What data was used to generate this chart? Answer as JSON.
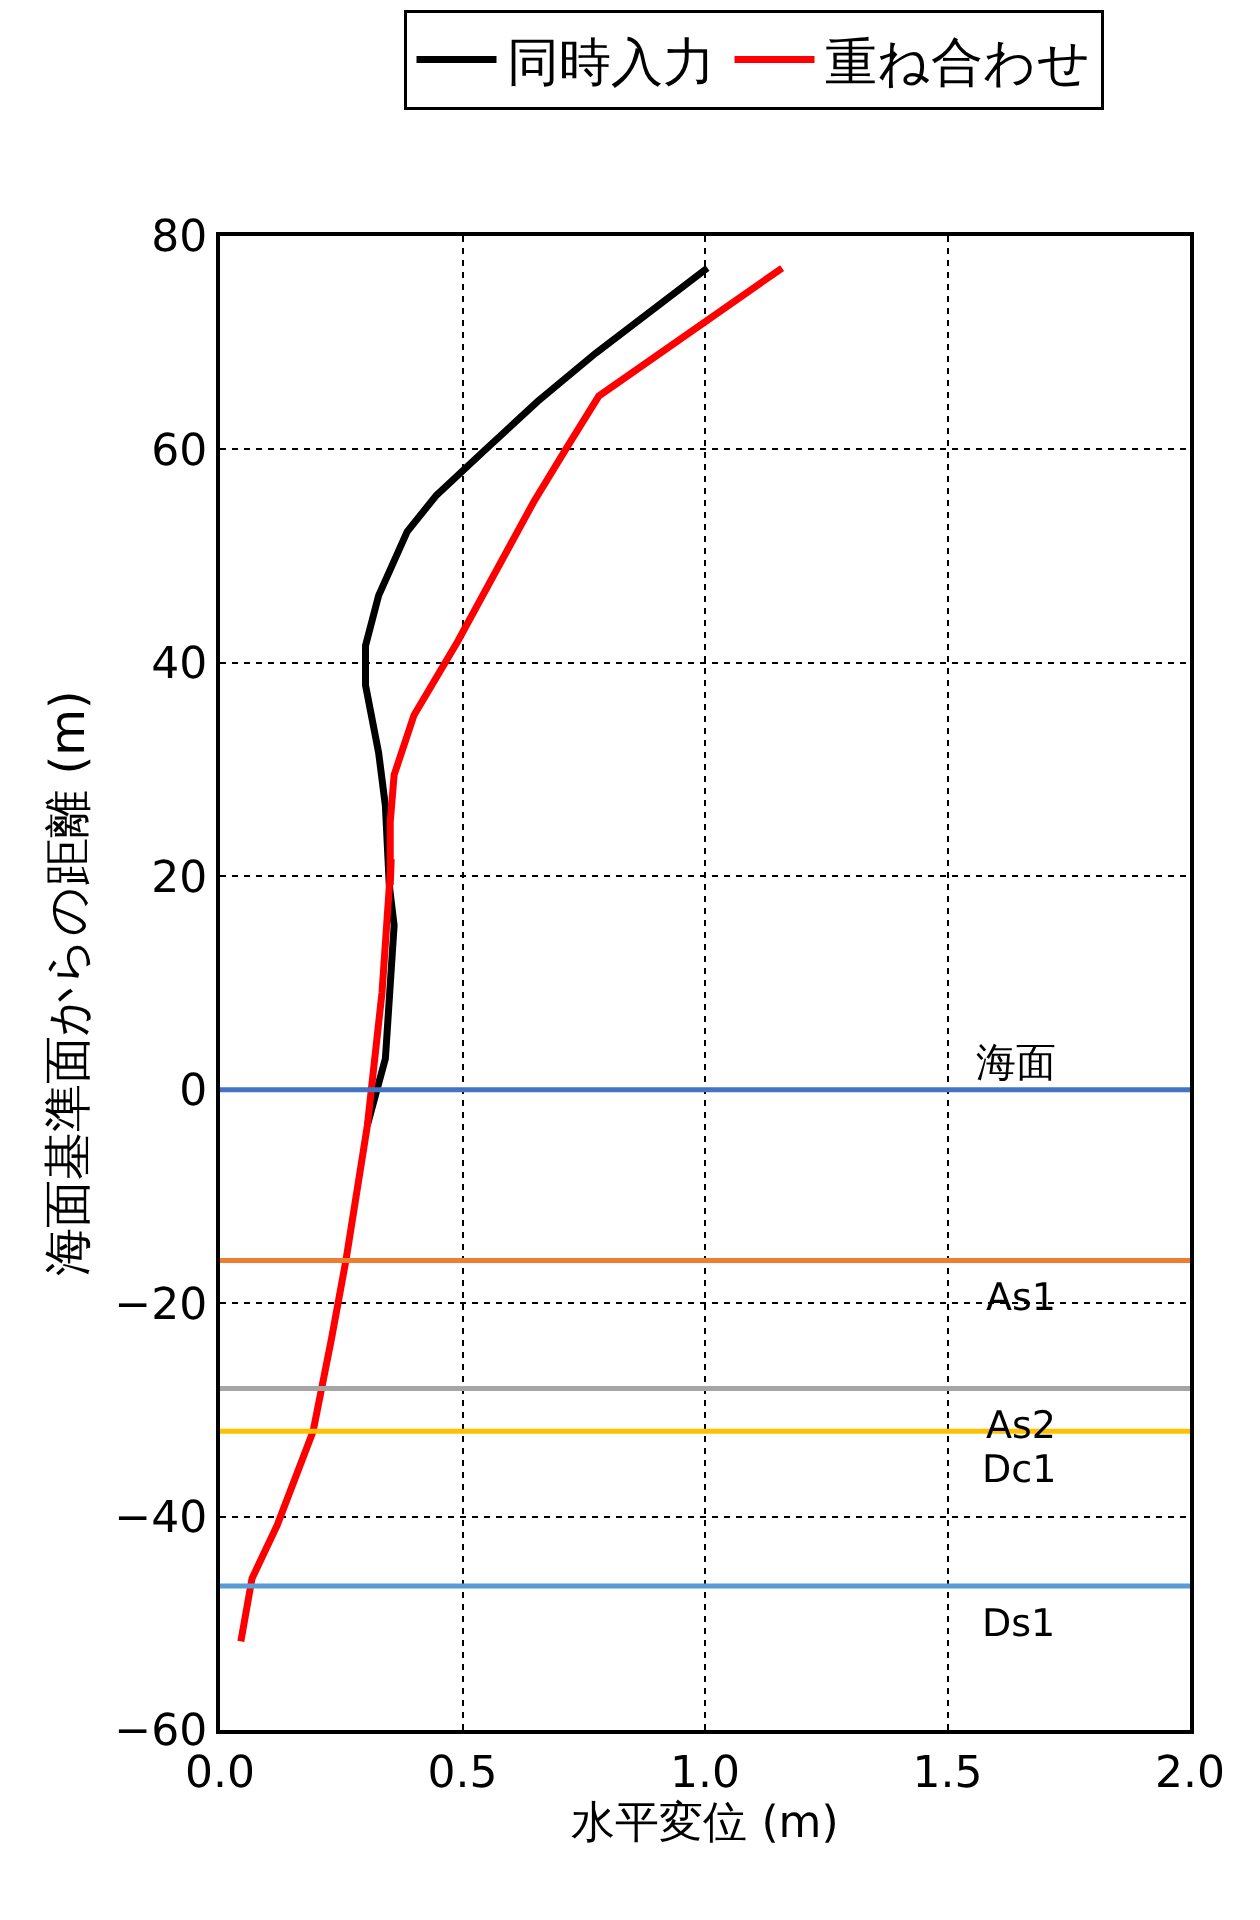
{
  "chart_data": {
    "type": "line",
    "xlabel": "水平変位 (m)",
    "ylabel": "海面基準面からの距離 (m)",
    "series": [
      {
        "name": "同時入力",
        "color": "#000000",
        "x": [
          0.304,
          0.341,
          0.359,
          0.349,
          0.341,
          0.327,
          0.3,
          0.3,
          0.327,
          0.386,
          0.446,
          0.543,
          0.655,
          0.774,
          1.005
        ],
        "values": [
          -3.3,
          2.9,
          15.4,
          19.2,
          26.6,
          31.6,
          37.9,
          41.6,
          46.3,
          52.3,
          55.7,
          59.8,
          64.5,
          69.0,
          77.0
        ]
      },
      {
        "name": "重ね合わせ",
        "color": "#ff0000",
        "x": [
          0.043,
          0.066,
          0.118,
          0.192,
          0.23,
          0.26,
          0.304,
          0.334,
          0.353,
          0.351,
          0.351,
          0.359,
          0.4,
          0.49,
          0.647,
          0.714,
          0.781,
          1.159
        ],
        "values": [
          -51.7,
          -45.8,
          -40.8,
          -32.0,
          -23.3,
          -15.9,
          -3.3,
          9.1,
          21.6,
          19.2,
          25.1,
          29.5,
          35.1,
          42.0,
          55.1,
          60.1,
          65.0,
          77.0
        ]
      }
    ],
    "xlim": [
      0,
      2.0
    ],
    "xticks": [
      {
        "value": 0,
        "label": "0.0"
      },
      0.5,
      {
        "value": 1,
        "label": "1.0"
      },
      1.5,
      {
        "value": 2,
        "label": "2.0"
      }
    ],
    "ylim": [
      -60,
      80
    ],
    "yticks": [
      {
        "value": -60,
        "label": "−60"
      },
      {
        "value": -40,
        "label": "−40"
      },
      {
        "value": -20,
        "label": "−20"
      },
      0,
      20,
      40,
      60,
      80
    ],
    "ref_lines": [
      {
        "axis": "y",
        "value": 0,
        "label": "海面",
        "color": "#4472c4"
      },
      {
        "axis": "y",
        "value": -16,
        "label": "As1",
        "color": "#ed7d31"
      },
      {
        "axis": "y",
        "value": -28,
        "label": "As2",
        "color": "#a5a5a5"
      },
      {
        "axis": "y",
        "value": -32,
        "label": "Dc1",
        "color": "#ffc000"
      },
      {
        "axis": "y",
        "value": -46.5,
        "label": "Ds1",
        "color": "#5b9bd5"
      }
    ],
    "grid": true,
    "legend": "top",
    "line_style": "solid",
    "marker": "none"
  }
}
